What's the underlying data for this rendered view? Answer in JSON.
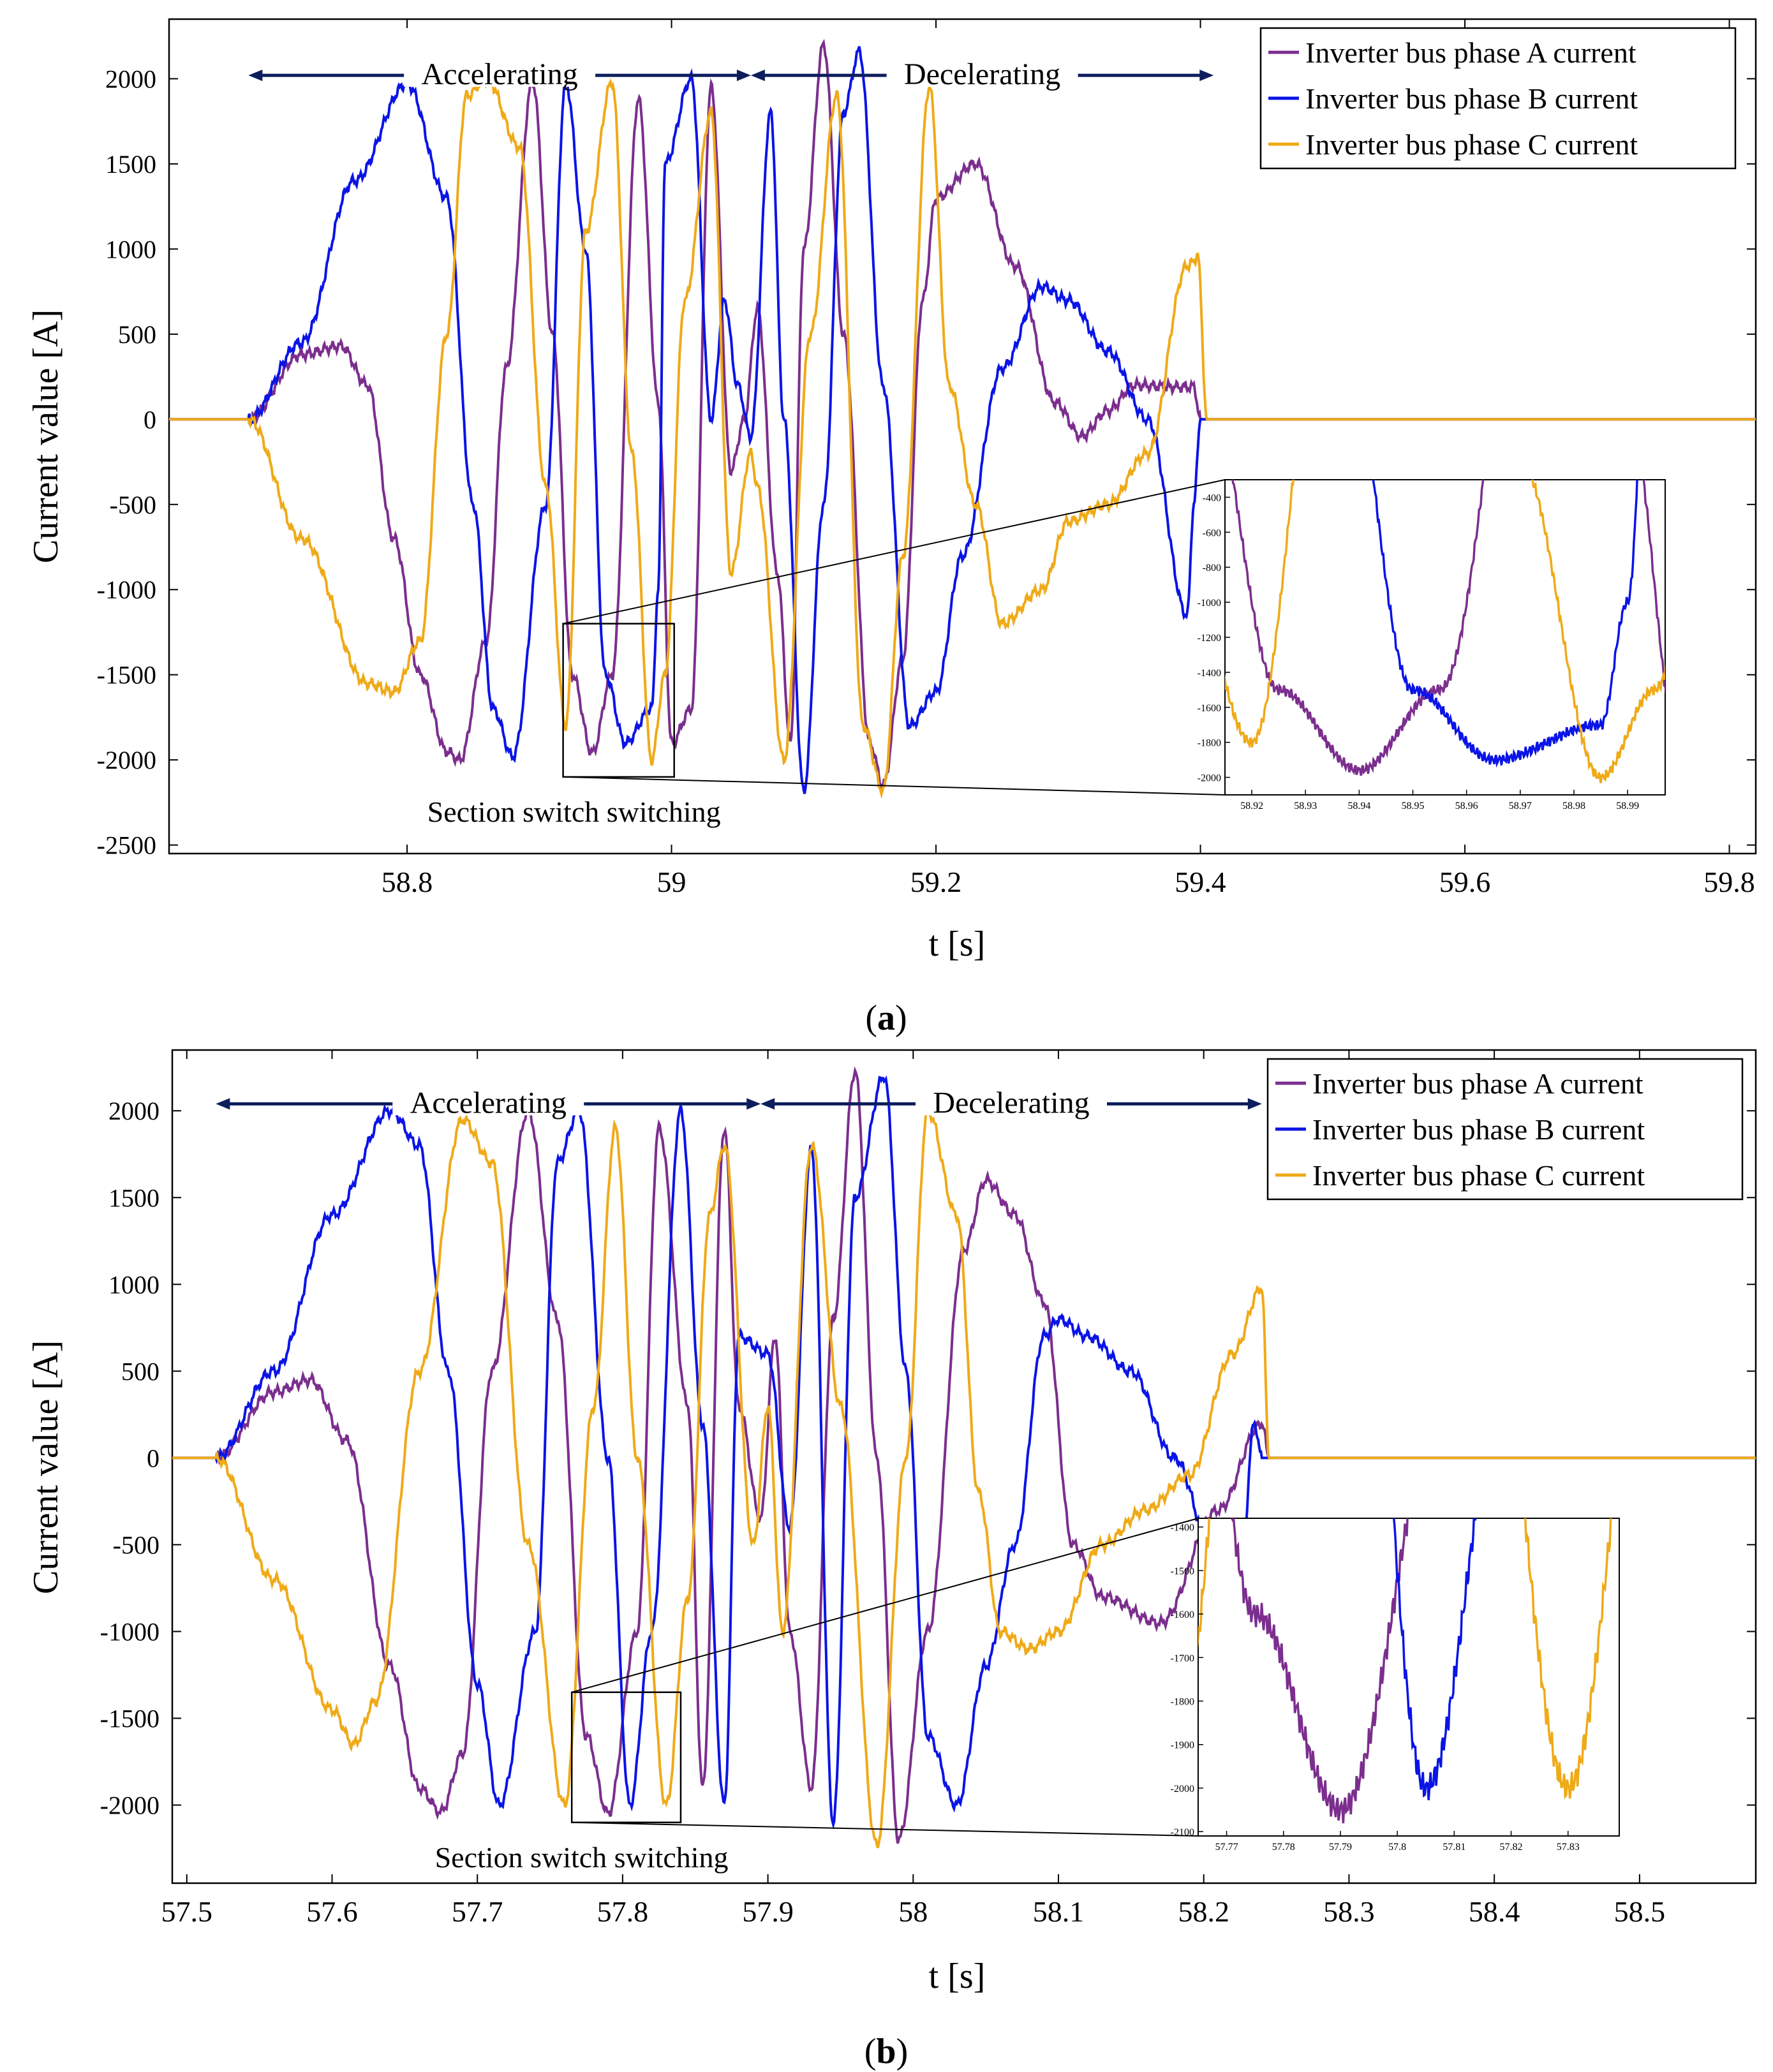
{
  "colors": {
    "phase_a": "#7B2E8E",
    "phase_b": "#0A14E6",
    "phase_c": "#EFAA18",
    "annotation_arrow": "#0D1E5C",
    "axes": "#000000"
  },
  "chart_data": [
    {
      "type": "line",
      "caption_letter": "a",
      "xlabel": "t [s]",
      "ylabel": "Current value [A]",
      "xlim": [
        58.62,
        59.82
      ],
      "ylim": [
        -2550,
        2350
      ],
      "xticks": [
        58.8,
        59.0,
        59.2,
        59.4,
        59.6,
        59.8
      ],
      "xtick_labels": [
        "58.8",
        "59",
        "59.2",
        "59.4",
        "59.6",
        "59.8"
      ],
      "yticks": [
        -2500,
        -2000,
        -1500,
        -1000,
        -500,
        0,
        500,
        1000,
        1500,
        2000
      ],
      "ytick_labels": [
        "-2500",
        "-2000",
        "-1500",
        "-1000",
        "-500",
        "0",
        "500",
        "1000",
        "1500",
        "2000"
      ],
      "legend": {
        "position": "top-right",
        "entries": [
          "Inverter bus phase A current",
          "Inverter bus phase B current",
          "Inverter bus phase C current"
        ]
      },
      "annotations": {
        "accelerating_label": "Accelerating",
        "accelerating_span": [
          58.68,
          59.06
        ],
        "decelerating_label": "Decelerating",
        "decelerating_span": [
          59.06,
          59.41
        ],
        "arrow_level": 2020,
        "section_switch_label": "Section switch switching",
        "zoom_box": {
          "x": [
            58.918,
            59.002
          ],
          "y": [
            -2100,
            -1200
          ]
        }
      },
      "inset": {
        "xlim": [
          58.915,
          58.997
        ],
        "ylim": [
          -2100,
          -300
        ],
        "xticks": [
          58.92,
          58.93,
          58.94,
          58.95,
          58.96,
          58.97,
          58.98,
          58.99
        ],
        "xtick_labels": [
          "58.92",
          "58.93",
          "58.94",
          "58.95",
          "58.96",
          "58.97",
          "58.98",
          "58.99"
        ],
        "yticks": [
          -2000,
          -1800,
          -1600,
          -1400,
          -1200,
          -1000,
          -800,
          -600,
          -400
        ],
        "ytick_labels": [
          "-2000",
          "-1800",
          "-1600",
          "-1400",
          "-1200",
          "-1000",
          "-800",
          "-600",
          "-400"
        ]
      },
      "series": [
        {
          "name": "Inverter bus phase A current",
          "x": [
            58.62,
            58.68,
            58.72,
            58.75,
            58.77,
            58.79,
            58.81,
            58.83,
            58.84,
            58.86,
            58.875,
            58.895,
            58.91,
            58.925,
            58.94,
            58.955,
            58.975,
            58.99,
            59.0,
            59.015,
            59.03,
            59.045,
            59.055,
            59.065,
            59.08,
            59.09,
            59.1,
            59.115,
            59.13,
            59.15,
            59.16,
            59.175,
            59.19,
            59.2,
            59.23,
            59.26,
            59.29,
            59.31,
            59.33,
            59.35,
            59.38,
            59.395,
            59.4,
            59.41,
            59.82
          ],
          "y": [
            0,
            0,
            380,
            430,
            200,
            -700,
            -1500,
            -1950,
            -2000,
            -1300,
            300,
            1980,
            500,
            -1500,
            -1960,
            -1500,
            1880,
            100,
            -1900,
            -1700,
            1950,
            -300,
            0,
            650,
            -900,
            -1900,
            1000,
            2200,
            500,
            -1900,
            -2150,
            -1400,
            700,
            1300,
            1500,
            900,
            100,
            -100,
            50,
            200,
            190,
            190,
            0,
            0,
            0
          ]
        },
        {
          "name": "Inverter bus phase B current",
          "x": [
            58.62,
            58.68,
            58.72,
            58.76,
            58.8,
            58.83,
            58.85,
            58.865,
            58.88,
            58.905,
            58.92,
            58.935,
            58.95,
            58.965,
            58.985,
            58.99,
            58.995,
            59.015,
            59.03,
            59.04,
            59.05,
            59.06,
            59.075,
            59.085,
            59.1,
            59.115,
            59.13,
            59.142,
            59.16,
            59.18,
            59.2,
            59.22,
            59.25,
            59.28,
            59.3,
            59.33,
            59.36,
            59.39,
            59.395,
            59.4,
            59.41,
            59.82
          ],
          "y": [
            0,
            0,
            450,
            1400,
            1970,
            1300,
            -500,
            -1700,
            -1980,
            -500,
            1980,
            1000,
            -1500,
            -1900,
            -1700,
            -1000,
            1500,
            2000,
            0,
            700,
            200,
            -100,
            1800,
            0,
            -2180,
            -500,
            1800,
            2160,
            200,
            -1800,
            -1600,
            -800,
            300,
            780,
            700,
            400,
            0,
            -1150,
            -500,
            0,
            0,
            0
          ]
        },
        {
          "name": "Inverter bus phase C current",
          "x": [
            58.62,
            58.68,
            58.72,
            58.77,
            58.79,
            58.81,
            58.83,
            58.845,
            58.86,
            58.885,
            58.905,
            58.92,
            58.935,
            58.955,
            58.97,
            58.985,
            58.995,
            59.01,
            59.03,
            59.045,
            59.06,
            59.065,
            59.085,
            59.105,
            59.125,
            59.145,
            59.16,
            59.175,
            59.195,
            59.21,
            59.23,
            59.25,
            59.28,
            59.3,
            59.33,
            59.36,
            59.39,
            59.398,
            59.405,
            59.41,
            59.82
          ],
          "y": [
            0,
            0,
            -700,
            -1550,
            -1600,
            -1300,
            500,
            1900,
            2000,
            1600,
            -400,
            -1800,
            1100,
            1980,
            -200,
            -2000,
            -1500,
            700,
            1800,
            -900,
            -200,
            -400,
            -2000,
            500,
            1900,
            -1800,
            -2180,
            -800,
            1950,
            200,
            -500,
            -1200,
            -1000,
            -600,
            -500,
            -200,
            900,
            950,
            0,
            0,
            0
          ]
        }
      ]
    },
    {
      "type": "line",
      "caption_letter": "b",
      "xlabel": "t [s]",
      "ylabel": "Current value [A]",
      "xlim": [
        57.49,
        58.58
      ],
      "ylim": [
        -2450,
        2350
      ],
      "xticks": [
        57.5,
        57.6,
        57.7,
        57.8,
        57.9,
        58.0,
        58.1,
        58.2,
        58.3,
        58.4,
        58.5
      ],
      "xtick_labels": [
        "57.5",
        "57.6",
        "57.7",
        "57.8",
        "57.9",
        "58",
        "58.1",
        "58.2",
        "58.3",
        "58.4",
        "58.5"
      ],
      "yticks": [
        -2000,
        -1500,
        -1000,
        -500,
        0,
        500,
        1000,
        1500,
        2000
      ],
      "ytick_labels": [
        "-2000",
        "-1500",
        "-1000",
        "-500",
        "0",
        "500",
        "1000",
        "1500",
        "2000"
      ],
      "legend": {
        "position": "top-right",
        "entries": [
          "Inverter bus phase A current",
          "Inverter bus phase B current",
          "Inverter bus phase C current"
        ]
      },
      "annotations": {
        "accelerating_label": "Accelerating",
        "accelerating_span": [
          57.52,
          57.895
        ],
        "decelerating_label": "Decelerating",
        "decelerating_span": [
          57.895,
          58.24
        ],
        "arrow_level": 2040,
        "section_switch_label": "Section switch switching",
        "zoom_box": {
          "x": [
            57.765,
            57.84
          ],
          "y": [
            -2100,
            -1350
          ]
        }
      },
      "inset": {
        "xlim": [
          57.765,
          57.839
        ],
        "ylim": [
          -2110,
          -1380
        ],
        "xticks": [
          57.77,
          57.78,
          57.79,
          57.8,
          57.81,
          57.82,
          57.83
        ],
        "xtick_labels": [
          "57.77",
          "57.78",
          "57.79",
          "57.8",
          "57.81",
          "57.82",
          "57.83"
        ],
        "yticks": [
          -2100,
          -2000,
          -1900,
          -1800,
          -1700,
          -1600,
          -1500,
          -1400
        ],
        "ytick_labels": [
          "-2100",
          "-2000",
          "-1900",
          "-1800",
          "-1700",
          "-1600",
          "-1500",
          "-1400"
        ]
      },
      "series": [
        {
          "name": "Inverter bus phase A current",
          "x": [
            57.49,
            57.52,
            57.56,
            57.585,
            57.61,
            57.64,
            57.66,
            57.675,
            57.69,
            57.71,
            57.735,
            57.755,
            57.775,
            57.79,
            57.81,
            57.825,
            57.845,
            57.855,
            57.87,
            57.88,
            57.895,
            57.905,
            57.915,
            57.93,
            57.945,
            57.96,
            57.975,
            57.99,
            58.01,
            58.035,
            58.05,
            58.07,
            58.09,
            58.11,
            58.13,
            58.17,
            58.21,
            58.24,
            58.245,
            58.25,
            58.58
          ],
          "y": [
            0,
            0,
            380,
            450,
            100,
            -1200,
            -1900,
            -2040,
            -1700,
            500,
            2000,
            800,
            -1600,
            -2050,
            -1000,
            1900,
            300,
            -1900,
            1900,
            300,
            -350,
            700,
            -1000,
            -1900,
            800,
            2230,
            0,
            -2200,
            -1000,
            1200,
            1600,
            1400,
            900,
            -500,
            -800,
            -950,
            -300,
            200,
            0,
            0,
            0
          ]
        },
        {
          "name": "Inverter bus phase B current",
          "x": [
            57.49,
            57.52,
            57.56,
            57.6,
            57.64,
            57.66,
            57.68,
            57.7,
            57.715,
            57.74,
            57.755,
            57.77,
            57.79,
            57.805,
            57.82,
            57.84,
            57.855,
            57.87,
            57.88,
            57.9,
            57.915,
            57.93,
            57.945,
            57.96,
            57.98,
            57.995,
            58.01,
            58.03,
            58.05,
            58.07,
            58.09,
            58.1,
            58.12,
            58.15,
            58.18,
            58.205,
            58.22,
            58.235,
            58.24,
            58.25,
            58.58
          ],
          "y": [
            0,
            0,
            500,
            1400,
            2000,
            1800,
            500,
            -1300,
            -2000,
            -1000,
            1700,
            2000,
            0,
            -2000,
            -1000,
            2000,
            200,
            -2000,
            700,
            600,
            -400,
            1780,
            -2100,
            1500,
            2200,
            500,
            -1600,
            -2000,
            -1200,
            -500,
            700,
            800,
            700,
            500,
            0,
            -500,
            -1600,
            200,
            0,
            0,
            0
          ]
        },
        {
          "name": "Inverter bus phase C current",
          "x": [
            57.49,
            57.52,
            57.56,
            57.6,
            57.615,
            57.63,
            57.66,
            57.69,
            57.71,
            57.735,
            57.76,
            57.78,
            57.795,
            57.81,
            57.83,
            57.845,
            57.86,
            57.87,
            57.89,
            57.9,
            57.91,
            57.93,
            57.95,
            57.975,
            57.995,
            58.01,
            58.03,
            58.045,
            58.06,
            58.08,
            58.1,
            58.13,
            58.16,
            58.19,
            58.22,
            58.24,
            58.245,
            58.25,
            58.58
          ],
          "y": [
            0,
            0,
            -700,
            -1450,
            -1650,
            -1400,
            500,
            1950,
            1700,
            -500,
            -2000,
            300,
            1900,
            0,
            -2000,
            -800,
            1400,
            1800,
            -500,
            300,
            -1000,
            1800,
            300,
            -2230,
            0,
            2000,
            1400,
            -200,
            -1000,
            -1100,
            -1000,
            -500,
            -300,
            -100,
            600,
            980,
            0,
            0,
            0
          ]
        }
      ]
    }
  ]
}
